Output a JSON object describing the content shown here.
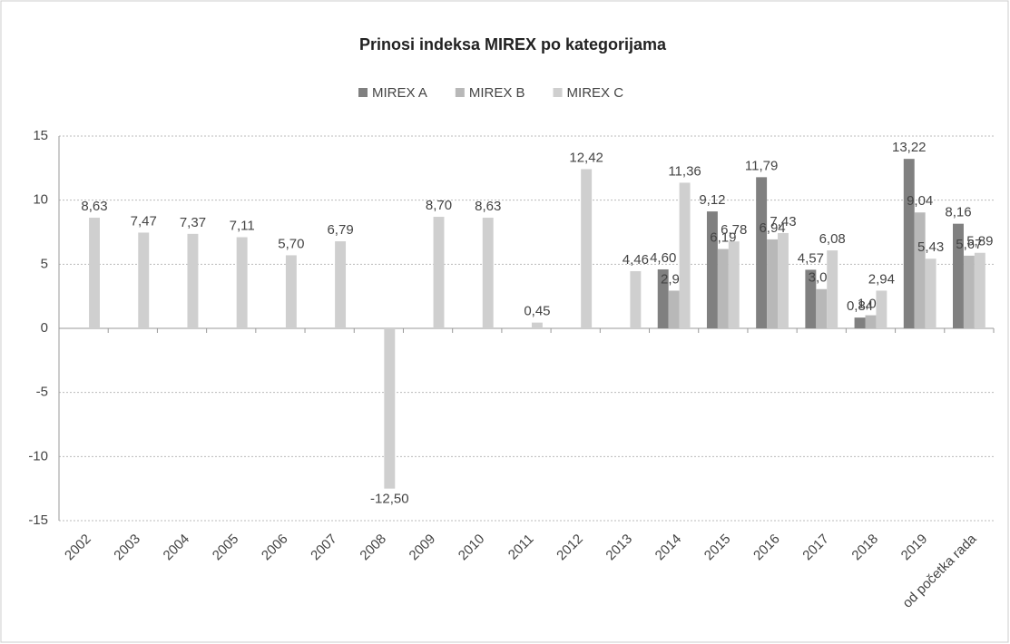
{
  "chart_data": {
    "type": "bar",
    "title": "Prinosi indeksa MIREX po kategorijama",
    "categories": [
      "2002",
      "2003",
      "2004",
      "2005",
      "2006",
      "2007",
      "2008",
      "2009",
      "2010",
      "2011",
      "2012",
      "2013",
      "2014",
      "2015",
      "2016",
      "2017",
      "2018",
      "2019",
      "od početka rada"
    ],
    "series": [
      {
        "name": "MIREX A",
        "color": "#808080",
        "values": [
          null,
          null,
          null,
          null,
          null,
          null,
          null,
          null,
          null,
          null,
          null,
          null,
          4.6,
          9.12,
          11.79,
          4.57,
          0.84,
          13.22,
          8.16
        ],
        "value_labels": [
          null,
          null,
          null,
          null,
          null,
          null,
          null,
          null,
          null,
          null,
          null,
          null,
          "4,60",
          "9,12",
          "11,79",
          "4,57",
          "0,84",
          "13,22",
          "8,16"
        ]
      },
      {
        "name": "MIREX B",
        "color": "#b8b8b8",
        "values": [
          null,
          null,
          null,
          null,
          null,
          null,
          null,
          null,
          null,
          null,
          null,
          null,
          2.94,
          6.19,
          6.94,
          3.06,
          1.02,
          9.04,
          5.67
        ],
        "value_labels": [
          null,
          null,
          null,
          null,
          null,
          null,
          null,
          null,
          null,
          null,
          null,
          null,
          "2,94",
          "6,19",
          "6,94",
          "3,06",
          "1,02",
          "9,04",
          "5,67"
        ]
      },
      {
        "name": "MIREX C",
        "color": "#cfcfcf",
        "values": [
          8.63,
          7.47,
          7.37,
          7.11,
          5.7,
          6.79,
          -12.5,
          8.7,
          8.63,
          0.45,
          12.42,
          4.46,
          11.36,
          6.78,
          7.43,
          6.08,
          2.94,
          5.43,
          5.89
        ],
        "value_labels": [
          "8,63",
          "7,47",
          "7,37",
          "7,11",
          "5,70",
          "6,79",
          "-12,50",
          "8,70",
          "8,63",
          "0,45",
          "12,42",
          "4,46",
          "11,36",
          "6,78",
          "7,43",
          "6,08",
          "2,94",
          "5,43",
          "5,89"
        ]
      }
    ],
    "ylim": [
      -15,
      15
    ],
    "yticks": [
      -15,
      -10,
      -5,
      0,
      5,
      10,
      15
    ],
    "grid": true,
    "legend": "top"
  }
}
